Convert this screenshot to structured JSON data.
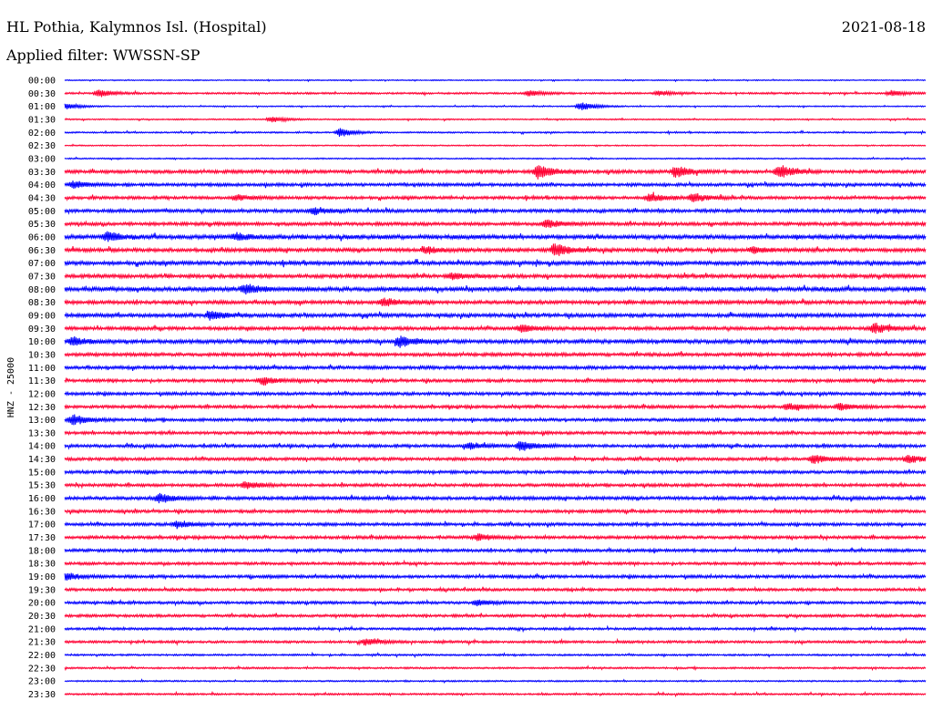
{
  "header": {
    "station_title": "HL Pothia, Kalymnos Isl. (Hospital)",
    "date": "2021-08-18",
    "filter_prefix": "Applied filter:",
    "filter_name": "WWSSN-SP"
  },
  "chart_data": {
    "type": "line",
    "title": "HL Pothia, Kalymnos Isl. (Hospital)",
    "subtitle": "Applied filter: WWSSN-SP",
    "ylabel": "HNZ - 25000",
    "xlabel": "",
    "grid": false,
    "legend": "none",
    "trace_colors": [
      "#0000ff",
      "#ff0033"
    ],
    "ytick_labels": [
      "00:00",
      "00:30",
      "01:00",
      "01:30",
      "02:00",
      "02:30",
      "03:00",
      "03:30",
      "04:00",
      "04:30",
      "05:00",
      "05:30",
      "06:00",
      "06:30",
      "07:00",
      "07:30",
      "08:00",
      "08:30",
      "09:00",
      "09:30",
      "10:00",
      "10:30",
      "11:00",
      "11:30",
      "12:00",
      "12:30",
      "13:00",
      "13:30",
      "14:00",
      "14:30",
      "15:00",
      "15:30",
      "16:00",
      "16:30",
      "17:00",
      "17:30",
      "18:00",
      "18:30",
      "19:00",
      "19:30",
      "20:00",
      "20:30",
      "21:00",
      "21:30",
      "22:00",
      "22:30",
      "23:00",
      "23:30"
    ],
    "trace_noise": [
      0.18,
      0.3,
      0.2,
      0.22,
      0.25,
      0.2,
      0.22,
      0.55,
      0.5,
      0.5,
      0.55,
      0.55,
      0.7,
      0.6,
      0.65,
      0.6,
      0.7,
      0.6,
      0.6,
      0.55,
      0.65,
      0.55,
      0.55,
      0.5,
      0.5,
      0.5,
      0.5,
      0.5,
      0.5,
      0.5,
      0.5,
      0.5,
      0.55,
      0.5,
      0.5,
      0.5,
      0.5,
      0.45,
      0.5,
      0.45,
      0.45,
      0.45,
      0.4,
      0.4,
      0.3,
      0.3,
      0.25,
      0.3
    ],
    "events": [
      {
        "trace": "00:30",
        "t": 0.04,
        "amp": 1.3
      },
      {
        "trace": "00:30",
        "t": 0.54,
        "amp": 1.0
      },
      {
        "trace": "00:30",
        "t": 0.69,
        "amp": 0.9
      },
      {
        "trace": "00:30",
        "t": 0.96,
        "amp": 1.0
      },
      {
        "trace": "01:00",
        "t": 0.0,
        "amp": 1.2
      },
      {
        "trace": "01:00",
        "t": 0.6,
        "amp": 1.5
      },
      {
        "trace": "01:30",
        "t": 0.24,
        "amp": 1.0
      },
      {
        "trace": "02:00",
        "t": 0.32,
        "amp": 1.5
      },
      {
        "trace": "03:30",
        "t": 0.55,
        "amp": 2.5
      },
      {
        "trace": "03:30",
        "t": 0.71,
        "amp": 2.0
      },
      {
        "trace": "03:30",
        "t": 0.83,
        "amp": 2.4
      },
      {
        "trace": "04:00",
        "t": 0.01,
        "amp": 1.2
      },
      {
        "trace": "04:30",
        "t": 0.2,
        "amp": 1.0
      },
      {
        "trace": "04:30",
        "t": 0.68,
        "amp": 1.5
      },
      {
        "trace": "04:30",
        "t": 0.73,
        "amp": 1.5
      },
      {
        "trace": "05:00",
        "t": 0.29,
        "amp": 1.2
      },
      {
        "trace": "05:30",
        "t": 0.56,
        "amp": 1.4
      },
      {
        "trace": "06:00",
        "t": 0.05,
        "amp": 1.6
      },
      {
        "trace": "06:00",
        "t": 0.2,
        "amp": 1.2
      },
      {
        "trace": "06:30",
        "t": 0.57,
        "amp": 2.3
      },
      {
        "trace": "06:30",
        "t": 0.42,
        "amp": 1.2
      },
      {
        "trace": "06:30",
        "t": 0.8,
        "amp": 1.0
      },
      {
        "trace": "07:30",
        "t": 0.45,
        "amp": 1.0
      },
      {
        "trace": "08:00",
        "t": 0.21,
        "amp": 1.8
      },
      {
        "trace": "08:30",
        "t": 0.37,
        "amp": 1.5
      },
      {
        "trace": "09:00",
        "t": 0.17,
        "amp": 1.6
      },
      {
        "trace": "09:30",
        "t": 0.94,
        "amp": 1.8
      },
      {
        "trace": "09:30",
        "t": 0.53,
        "amp": 1.2
      },
      {
        "trace": "10:00",
        "t": 0.39,
        "amp": 2.0
      },
      {
        "trace": "10:00",
        "t": 0.01,
        "amp": 1.3
      },
      {
        "trace": "11:30",
        "t": 0.23,
        "amp": 1.4
      },
      {
        "trace": "12:30",
        "t": 0.9,
        "amp": 1.3
      },
      {
        "trace": "12:30",
        "t": 0.84,
        "amp": 1.1
      },
      {
        "trace": "13:00",
        "t": 0.01,
        "amp": 1.8
      },
      {
        "trace": "14:00",
        "t": 0.53,
        "amp": 1.8
      },
      {
        "trace": "14:00",
        "t": 0.47,
        "amp": 1.2
      },
      {
        "trace": "14:30",
        "t": 0.87,
        "amp": 1.5
      },
      {
        "trace": "14:30",
        "t": 0.98,
        "amp": 1.4
      },
      {
        "trace": "15:30",
        "t": 0.21,
        "amp": 1.2
      },
      {
        "trace": "16:00",
        "t": 0.11,
        "amp": 1.6
      },
      {
        "trace": "17:00",
        "t": 0.13,
        "amp": 1.2
      },
      {
        "trace": "17:30",
        "t": 0.48,
        "amp": 1.2
      },
      {
        "trace": "19:00",
        "t": 0.0,
        "amp": 1.3
      },
      {
        "trace": "20:00",
        "t": 0.48,
        "amp": 1.0
      },
      {
        "trace": "21:30",
        "t": 0.35,
        "amp": 1.3
      }
    ]
  }
}
